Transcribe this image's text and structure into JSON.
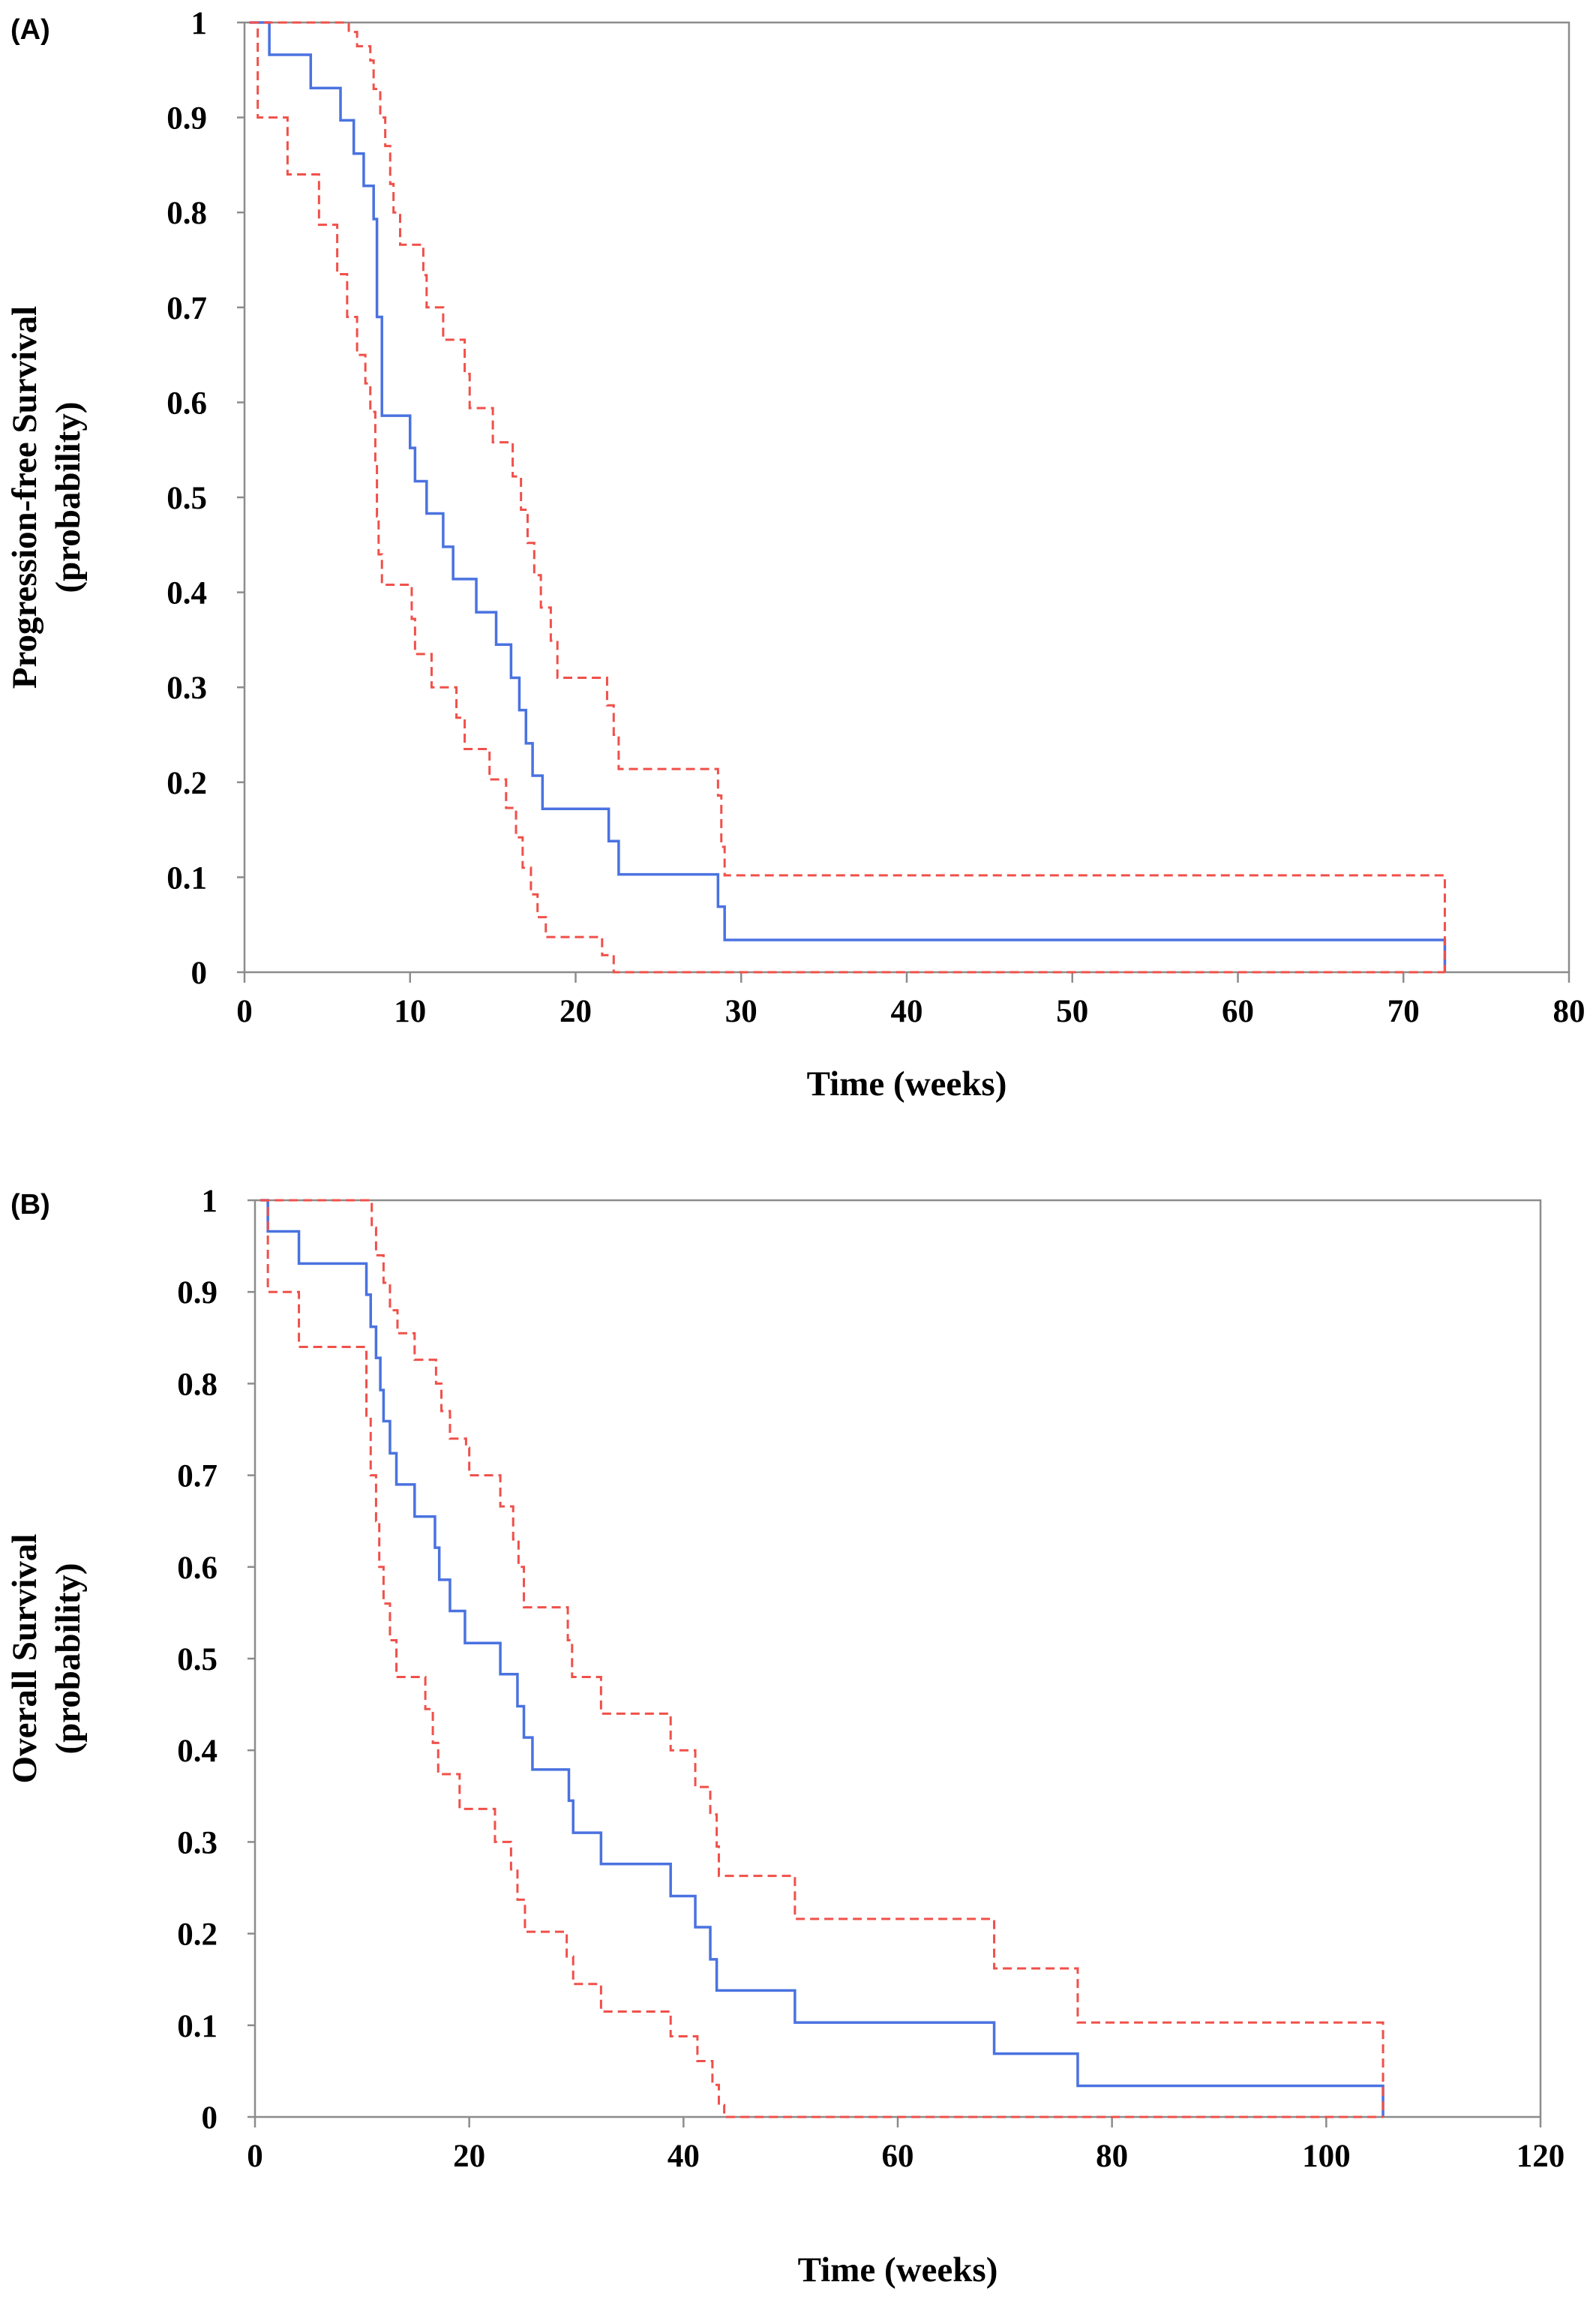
{
  "chart_data": [
    {
      "type": "line",
      "panel_label": "(A)",
      "xlabel": "Time (weeks)",
      "ylabel_lines": [
        "Progression-free Survival",
        "(probability)"
      ],
      "xlim": [
        0,
        80
      ],
      "ylim": [
        0,
        1
      ],
      "x_ticks": [
        0,
        10,
        20,
        30,
        40,
        50,
        60,
        70,
        80
      ],
      "y_ticks": [
        0,
        0.1,
        0.2,
        0.3,
        0.4,
        0.5,
        0.6,
        0.7,
        0.8,
        0.9,
        1
      ],
      "x_tick_labels": [
        "0",
        "10",
        "20",
        "30",
        "40",
        "50",
        "60",
        "70",
        "80"
      ],
      "y_tick_labels": [
        "0",
        "0.1",
        "0.2",
        "0.3",
        "0.4",
        "0.5",
        "0.6",
        "0.7",
        "0.8",
        "0.9",
        "1"
      ],
      "grid": false,
      "legend": "none",
      "series": [
        {
          "color": "#4a72e0",
          "style": "solid",
          "steps": [
            [
              0.3,
              1.0
            ],
            [
              1.5,
              0.966
            ],
            [
              4,
              0.931
            ],
            [
              5.8,
              0.897
            ],
            [
              6.6,
              0.862
            ],
            [
              7.2,
              0.828
            ],
            [
              7.8,
              0.793
            ],
            [
              8.0,
              0.69
            ],
            [
              8.3,
              0.586
            ],
            [
              10,
              0.552
            ],
            [
              10.3,
              0.517
            ],
            [
              11,
              0.483
            ],
            [
              12,
              0.448
            ],
            [
              12.6,
              0.414
            ],
            [
              14,
              0.379
            ],
            [
              15.2,
              0.345
            ],
            [
              16.1,
              0.31
            ],
            [
              16.6,
              0.276
            ],
            [
              17,
              0.241
            ],
            [
              17.4,
              0.207
            ],
            [
              18,
              0.172
            ],
            [
              22,
              0.138
            ],
            [
              22.6,
              0.103
            ],
            [
              28.6,
              0.069
            ],
            [
              29,
              0.034
            ],
            [
              72.5,
              0.034
            ],
            [
              72.5,
              0.0
            ]
          ]
        },
        {
          "color": "#f0504a",
          "style": "dashed",
          "steps": [
            [
              0.3,
              1.0
            ],
            [
              6.3,
              0.99
            ],
            [
              6.8,
              0.975
            ],
            [
              7.6,
              0.96
            ],
            [
              7.8,
              0.93
            ],
            [
              8.2,
              0.9
            ],
            [
              8.5,
              0.87
            ],
            [
              8.8,
              0.83
            ],
            [
              9,
              0.8
            ],
            [
              9.4,
              0.766
            ],
            [
              10.8,
              0.734
            ],
            [
              11,
              0.7
            ],
            [
              12,
              0.666
            ],
            [
              13.3,
              0.63
            ],
            [
              13.6,
              0.594
            ],
            [
              15,
              0.558
            ],
            [
              16.2,
              0.522
            ],
            [
              16.7,
              0.487
            ],
            [
              17.1,
              0.452
            ],
            [
              17.5,
              0.418
            ],
            [
              17.9,
              0.384
            ],
            [
              18.5,
              0.349
            ],
            [
              18.9,
              0.31
            ],
            [
              21.9,
              0.281
            ],
            [
              22.3,
              0.25
            ],
            [
              22.6,
              0.214
            ],
            [
              28.6,
              0.186
            ],
            [
              28.8,
              0.132
            ],
            [
              29,
              0.102
            ],
            [
              72.5,
              0.102
            ],
            [
              72.5,
              0.0
            ]
          ]
        },
        {
          "color": "#f0504a",
          "style": "dashed",
          "steps": [
            [
              0.3,
              1.0
            ],
            [
              0.8,
              0.9
            ],
            [
              2.6,
              0.84
            ],
            [
              4.5,
              0.787
            ],
            [
              5.6,
              0.735
            ],
            [
              6.2,
              0.69
            ],
            [
              6.8,
              0.65
            ],
            [
              7.3,
              0.62
            ],
            [
              7.6,
              0.59
            ],
            [
              7.9,
              0.535
            ],
            [
              8.0,
              0.48
            ],
            [
              8.1,
              0.44
            ],
            [
              8.3,
              0.408
            ],
            [
              10.1,
              0.372
            ],
            [
              10.3,
              0.335
            ],
            [
              11.3,
              0.3
            ],
            [
              12.8,
              0.268
            ],
            [
              13.3,
              0.235
            ],
            [
              14.8,
              0.203
            ],
            [
              15.8,
              0.173
            ],
            [
              16.4,
              0.142
            ],
            [
              16.8,
              0.11
            ],
            [
              17.3,
              0.082
            ],
            [
              17.7,
              0.058
            ],
            [
              18.2,
              0.037
            ],
            [
              21.6,
              0.018
            ],
            [
              22.3,
              0.0
            ],
            [
              72.5,
              0.0
            ]
          ]
        }
      ]
    },
    {
      "type": "line",
      "panel_label": "(B)",
      "xlabel": "Time (weeks)",
      "ylabel_lines": [
        "Overall Survival",
        "(probability)"
      ],
      "xlim": [
        0,
        120
      ],
      "ylim": [
        0,
        1
      ],
      "x_ticks": [
        0,
        20,
        40,
        60,
        80,
        100,
        120
      ],
      "y_ticks": [
        0,
        0.1,
        0.2,
        0.3,
        0.4,
        0.5,
        0.6,
        0.7,
        0.8,
        0.9,
        1
      ],
      "x_tick_labels": [
        "0",
        "20",
        "40",
        "60",
        "80",
        "100",
        "120"
      ],
      "y_tick_labels": [
        "0",
        "0.1",
        "0.2",
        "0.3",
        "0.4",
        "0.5",
        "0.6",
        "0.7",
        "0.8",
        "0.9",
        "1"
      ],
      "grid": false,
      "legend": "none",
      "series": [
        {
          "color": "#4a72e0",
          "style": "solid",
          "steps": [
            [
              0.5,
              1.0
            ],
            [
              1.2,
              0.966
            ],
            [
              4.1,
              0.931
            ],
            [
              10.4,
              0.897
            ],
            [
              10.8,
              0.862
            ],
            [
              11.3,
              0.828
            ],
            [
              11.7,
              0.793
            ],
            [
              12,
              0.759
            ],
            [
              12.6,
              0.724
            ],
            [
              13.2,
              0.69
            ],
            [
              14.9,
              0.655
            ],
            [
              16.8,
              0.621
            ],
            [
              17.2,
              0.586
            ],
            [
              18.2,
              0.552
            ],
            [
              19.6,
              0.517
            ],
            [
              22.9,
              0.483
            ],
            [
              24.5,
              0.448
            ],
            [
              25.1,
              0.414
            ],
            [
              25.9,
              0.379
            ],
            [
              29.3,
              0.345
            ],
            [
              29.7,
              0.31
            ],
            [
              32.3,
              0.276
            ],
            [
              38.8,
              0.241
            ],
            [
              41.1,
              0.207
            ],
            [
              42.5,
              0.172
            ],
            [
              43.1,
              0.138
            ],
            [
              49.2,
              0.138
            ],
            [
              50.4,
              0.103
            ],
            [
              69,
              0.069
            ],
            [
              76.8,
              0.034
            ],
            [
              105.3,
              0.034
            ],
            [
              105.3,
              0.0
            ]
          ]
        },
        {
          "color": "#f0504a",
          "style": "dashed",
          "steps": [
            [
              0.5,
              1.0
            ],
            [
              10.6,
              1.0
            ],
            [
              10.9,
              0.97
            ],
            [
              11.3,
              0.94
            ],
            [
              12,
              0.91
            ],
            [
              12.6,
              0.88
            ],
            [
              13.3,
              0.855
            ],
            [
              14.9,
              0.826
            ],
            [
              16.9,
              0.8
            ],
            [
              17.4,
              0.77
            ],
            [
              18.2,
              0.74
            ],
            [
              19.7,
              0.73
            ],
            [
              20,
              0.7
            ],
            [
              22.9,
              0.666
            ],
            [
              24.1,
              0.63
            ],
            [
              24.6,
              0.6
            ],
            [
              25.1,
              0.556
            ],
            [
              29.2,
              0.52
            ],
            [
              29.6,
              0.48
            ],
            [
              32.3,
              0.44
            ],
            [
              38.8,
              0.4
            ],
            [
              41.1,
              0.36
            ],
            [
              42.5,
              0.33
            ],
            [
              43.1,
              0.295
            ],
            [
              43.3,
              0.263
            ],
            [
              50.4,
              0.216
            ],
            [
              69,
              0.162
            ],
            [
              76.8,
              0.103
            ],
            [
              105.3,
              0.103
            ],
            [
              105.3,
              0.0
            ]
          ]
        },
        {
          "color": "#f0504a",
          "style": "dashed",
          "steps": [
            [
              0.5,
              1.0
            ],
            [
              1.2,
              0.9
            ],
            [
              4.1,
              0.84
            ],
            [
              10.4,
              0.765
            ],
            [
              10.8,
              0.7
            ],
            [
              11.3,
              0.65
            ],
            [
              11.6,
              0.6
            ],
            [
              12,
              0.56
            ],
            [
              12.6,
              0.52
            ],
            [
              13.2,
              0.48
            ],
            [
              15.9,
              0.445
            ],
            [
              16.6,
              0.408
            ],
            [
              17.1,
              0.374
            ],
            [
              19.1,
              0.336
            ],
            [
              22.4,
              0.3
            ],
            [
              23.9,
              0.27
            ],
            [
              24.5,
              0.237
            ],
            [
              25.2,
              0.202
            ],
            [
              29.1,
              0.175
            ],
            [
              29.7,
              0.145
            ],
            [
              32.3,
              0.115
            ],
            [
              38.8,
              0.088
            ],
            [
              41.3,
              0.061
            ],
            [
              42.7,
              0.035
            ],
            [
              43.3,
              0.013
            ],
            [
              43.8,
              0.0
            ],
            [
              105.3,
              0.0
            ]
          ]
        }
      ]
    }
  ]
}
